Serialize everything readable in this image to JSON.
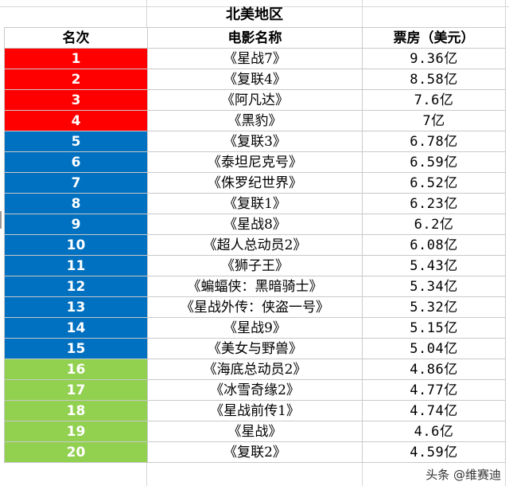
{
  "title": "北美地区",
  "headers": [
    "名次",
    "电影名称",
    "票房（美元）"
  ],
  "colors": {
    "red": "#ff0000",
    "blue": "#0070c0",
    "green": "#92d050"
  },
  "rows": [
    {
      "rank": "1",
      "name": "《星战7》",
      "box": "9.36亿",
      "color": "#ff0000"
    },
    {
      "rank": "2",
      "name": "《复联4》",
      "box": "8.58亿",
      "color": "#ff0000"
    },
    {
      "rank": "3",
      "name": "《阿凡达》",
      "box": "7.6亿",
      "color": "#ff0000"
    },
    {
      "rank": "4",
      "name": "《黑豹》",
      "box": "7亿",
      "color": "#ff0000"
    },
    {
      "rank": "5",
      "name": "《复联3》",
      "box": "6.78亿",
      "color": "#0070c0"
    },
    {
      "rank": "6",
      "name": "《泰坦尼克号》",
      "box": "6.59亿",
      "color": "#0070c0"
    },
    {
      "rank": "7",
      "name": "《侏罗纪世界》",
      "box": "6.52亿",
      "color": "#0070c0"
    },
    {
      "rank": "8",
      "name": "《复联1》",
      "box": "6.23亿",
      "color": "#0070c0"
    },
    {
      "rank": "9",
      "name": "《星战8》",
      "box": "6.2亿",
      "color": "#0070c0"
    },
    {
      "rank": "10",
      "name": "《超人总动员2》",
      "box": "6.08亿",
      "color": "#0070c0"
    },
    {
      "rank": "11",
      "name": "《狮子王》",
      "box": "5.43亿",
      "color": "#0070c0"
    },
    {
      "rank": "12",
      "name": "《蝙蝠侠：黑暗骑士》",
      "box": "5.34亿",
      "color": "#0070c0"
    },
    {
      "rank": "13",
      "name": "《星战外传：侠盗一号》",
      "box": "5.32亿",
      "color": "#0070c0"
    },
    {
      "rank": "14",
      "name": "《星战9》",
      "box": "5.15亿",
      "color": "#0070c0"
    },
    {
      "rank": "15",
      "name": "《美女与野兽》",
      "box": "5.04亿",
      "color": "#0070c0"
    },
    {
      "rank": "16",
      "name": "《海底总动员2》",
      "box": "4.86亿",
      "color": "#92d050"
    },
    {
      "rank": "17",
      "name": "《冰雪奇缘2》",
      "box": "4.77亿",
      "color": "#92d050"
    },
    {
      "rank": "18",
      "name": "《星战前传1》",
      "box": "4.74亿",
      "color": "#92d050"
    },
    {
      "rank": "19",
      "name": "《星战》",
      "box": "4.6亿",
      "color": "#92d050"
    },
    {
      "rank": "20",
      "name": "《复联2》",
      "box": "4.59亿",
      "color": "#92d050"
    }
  ],
  "watermark": "头条 @维赛迪"
}
